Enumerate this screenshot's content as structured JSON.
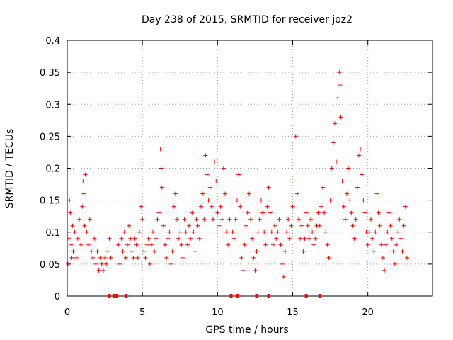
{
  "chart_data": {
    "type": "scatter",
    "title": "Day 238 of 2015, SRMTID for receiver joz2",
    "xlabel": "GPS time / hours",
    "ylabel": "SRMTID / TECUs",
    "xlim": [
      0,
      24.3
    ],
    "ylim": [
      0,
      0.4
    ],
    "xticks": [
      0,
      5,
      10,
      15,
      20
    ],
    "xtick_labels": [
      "0",
      "5",
      "10",
      "15",
      "20"
    ],
    "yticks": [
      0,
      0.05,
      0.1,
      0.15,
      0.2,
      0.25,
      0.3,
      0.35,
      0.4
    ],
    "ytick_labels": [
      "0",
      "0.05",
      "0.1",
      "0.15",
      "0.2",
      "0.25",
      "0.3",
      "0.35",
      "0.4"
    ],
    "grid": true,
    "marker": "+",
    "color": "#ff0000",
    "series": [
      {
        "name": "SRMTID",
        "points": [
          [
            0.05,
            0.05
          ],
          [
            0.1,
            0.09
          ],
          [
            0.15,
            0.15
          ],
          [
            0.2,
            0.13
          ],
          [
            0.25,
            0.08
          ],
          [
            0.3,
            0.06
          ],
          [
            0.35,
            0.11
          ],
          [
            0.4,
            0.07
          ],
          [
            0.5,
            0.1
          ],
          [
            0.6,
            0.06
          ],
          [
            0.7,
            0.09
          ],
          [
            0.8,
            0.12
          ],
          [
            0.9,
            0.08
          ],
          [
            1.0,
            0.14
          ],
          [
            1.05,
            0.18
          ],
          [
            1.1,
            0.16
          ],
          [
            1.15,
            0.11
          ],
          [
            1.2,
            0.19
          ],
          [
            1.3,
            0.1
          ],
          [
            1.4,
            0.08
          ],
          [
            1.5,
            0.12
          ],
          [
            1.6,
            0.07
          ],
          [
            1.7,
            0.06
          ],
          [
            1.8,
            0.09
          ],
          [
            1.9,
            0.05
          ],
          [
            2.0,
            0.07
          ],
          [
            2.1,
            0.04
          ],
          [
            2.2,
            0.06
          ],
          [
            2.3,
            0.05
          ],
          [
            2.4,
            0.04
          ],
          [
            2.5,
            0.06
          ],
          [
            2.6,
            0.05
          ],
          [
            2.7,
            0.07
          ],
          [
            2.8,
            0.09
          ],
          [
            2.9,
            0.06
          ],
          [
            3.4,
            0.08
          ],
          [
            3.5,
            0.05
          ],
          [
            3.6,
            0.09
          ],
          [
            3.7,
            0.07
          ],
          [
            3.8,
            0.1
          ],
          [
            3.9,
            0.06
          ],
          [
            4.0,
            0.08
          ],
          [
            4.1,
            0.11
          ],
          [
            4.2,
            0.09
          ],
          [
            4.3,
            0.07
          ],
          [
            4.4,
            0.06
          ],
          [
            4.5,
            0.09
          ],
          [
            4.6,
            0.08
          ],
          [
            4.7,
            0.06
          ],
          [
            4.8,
            0.1
          ],
          [
            4.9,
            0.14
          ],
          [
            5.0,
            0.12
          ],
          [
            5.1,
            0.07
          ],
          [
            5.2,
            0.06
          ],
          [
            5.3,
            0.08
          ],
          [
            5.4,
            0.09
          ],
          [
            5.5,
            0.05
          ],
          [
            5.6,
            0.08
          ],
          [
            5.7,
            0.1
          ],
          [
            5.8,
            0.07
          ],
          [
            5.9,
            0.09
          ],
          [
            6.0,
            0.12
          ],
          [
            6.1,
            0.13
          ],
          [
            6.2,
            0.23
          ],
          [
            6.25,
            0.2
          ],
          [
            6.3,
            0.17
          ],
          [
            6.4,
            0.11
          ],
          [
            6.5,
            0.08
          ],
          [
            6.6,
            0.06
          ],
          [
            6.7,
            0.09
          ],
          [
            6.8,
            0.1
          ],
          [
            6.9,
            0.05
          ],
          [
            7.0,
            0.07
          ],
          [
            7.1,
            0.14
          ],
          [
            7.2,
            0.16
          ],
          [
            7.3,
            0.12
          ],
          [
            7.4,
            0.09
          ],
          [
            7.5,
            0.1
          ],
          [
            7.6,
            0.08
          ],
          [
            7.7,
            0.06
          ],
          [
            7.8,
            0.12
          ],
          [
            7.9,
            0.1
          ],
          [
            8.0,
            0.08
          ],
          [
            8.1,
            0.11
          ],
          [
            8.2,
            0.09
          ],
          [
            8.3,
            0.13
          ],
          [
            8.4,
            0.1
          ],
          [
            8.5,
            0.07
          ],
          [
            8.6,
            0.12
          ],
          [
            8.7,
            0.11
          ],
          [
            8.8,
            0.09
          ],
          [
            8.9,
            0.14
          ],
          [
            9.0,
            0.16
          ],
          [
            9.1,
            0.12
          ],
          [
            9.2,
            0.22
          ],
          [
            9.3,
            0.19
          ],
          [
            9.4,
            0.15
          ],
          [
            9.5,
            0.17
          ],
          [
            9.6,
            0.14
          ],
          [
            9.7,
            0.12
          ],
          [
            9.8,
            0.21
          ],
          [
            9.9,
            0.18
          ],
          [
            10.0,
            0.13
          ],
          [
            10.1,
            0.11
          ],
          [
            10.2,
            0.14
          ],
          [
            10.3,
            0.12
          ],
          [
            10.4,
            0.2
          ],
          [
            10.5,
            0.16
          ],
          [
            10.6,
            0.1
          ],
          [
            10.7,
            0.08
          ],
          [
            10.8,
            0.12
          ],
          [
            11.0,
            0.1
          ],
          [
            11.1,
            0.09
          ],
          [
            11.2,
            0.12
          ],
          [
            11.3,
            0.15
          ],
          [
            11.4,
            0.19
          ],
          [
            11.5,
            0.14
          ],
          [
            11.6,
            0.06
          ],
          [
            11.7,
            0.04
          ],
          [
            11.8,
            0.08
          ],
          [
            11.9,
            0.11
          ],
          [
            12.0,
            0.13
          ],
          [
            12.1,
            0.16
          ],
          [
            12.2,
            0.12
          ],
          [
            12.3,
            0.09
          ],
          [
            12.4,
            0.06
          ],
          [
            12.5,
            0.04
          ],
          [
            12.6,
            0.07
          ],
          [
            12.7,
            0.1
          ],
          [
            12.8,
            0.12
          ],
          [
            12.9,
            0.15
          ],
          [
            13.0,
            0.13
          ],
          [
            13.1,
            0.1
          ],
          [
            13.2,
            0.08
          ],
          [
            13.3,
            0.14
          ],
          [
            13.4,
            0.17
          ],
          [
            13.5,
            0.13
          ],
          [
            13.6,
            0.1
          ],
          [
            13.7,
            0.08
          ],
          [
            13.8,
            0.11
          ],
          [
            13.9,
            0.09
          ],
          [
            14.0,
            0.1
          ],
          [
            14.1,
            0.12
          ],
          [
            14.2,
            0.08
          ],
          [
            14.3,
            0.05
          ],
          [
            14.4,
            0.03
          ],
          [
            14.5,
            0.07
          ],
          [
            14.6,
            0.1
          ],
          [
            14.7,
            0.12
          ],
          [
            14.8,
            0.09
          ],
          [
            14.9,
            0.11
          ],
          [
            15.0,
            0.14
          ],
          [
            15.1,
            0.18
          ],
          [
            15.2,
            0.25
          ],
          [
            15.3,
            0.16
          ],
          [
            15.4,
            0.12
          ],
          [
            15.5,
            0.09
          ],
          [
            15.6,
            0.11
          ],
          [
            15.7,
            0.07
          ],
          [
            15.8,
            0.09
          ],
          [
            15.9,
            0.13
          ],
          [
            16.0,
            0.11
          ],
          [
            16.1,
            0.09
          ],
          [
            16.2,
            0.12
          ],
          [
            16.3,
            0.1
          ],
          [
            16.4,
            0.08
          ],
          [
            16.5,
            0.09
          ],
          [
            16.6,
            0.11
          ],
          [
            16.7,
            0.13
          ],
          [
            16.8,
            0.11
          ],
          [
            16.9,
            0.14
          ],
          [
            17.0,
            0.17
          ],
          [
            17.1,
            0.13
          ],
          [
            17.2,
            0.1
          ],
          [
            17.3,
            0.08
          ],
          [
            17.4,
            0.06
          ],
          [
            17.5,
            0.15
          ],
          [
            17.6,
            0.2
          ],
          [
            17.7,
            0.24
          ],
          [
            17.8,
            0.27
          ],
          [
            17.9,
            0.21
          ],
          [
            18.0,
            0.31
          ],
          [
            18.1,
            0.35
          ],
          [
            18.15,
            0.33
          ],
          [
            18.2,
            0.28
          ],
          [
            18.3,
            0.18
          ],
          [
            18.4,
            0.14
          ],
          [
            18.5,
            0.12
          ],
          [
            18.6,
            0.16
          ],
          [
            18.7,
            0.2
          ],
          [
            18.8,
            0.15
          ],
          [
            18.9,
            0.13
          ],
          [
            19.0,
            0.11
          ],
          [
            19.1,
            0.09
          ],
          [
            19.2,
            0.12
          ],
          [
            19.3,
            0.17
          ],
          [
            19.4,
            0.22
          ],
          [
            19.5,
            0.23
          ],
          [
            19.6,
            0.19
          ],
          [
            19.7,
            0.15
          ],
          [
            19.8,
            0.13
          ],
          [
            19.9,
            0.1
          ],
          [
            20.0,
            0.08
          ],
          [
            20.1,
            0.1
          ],
          [
            20.2,
            0.12
          ],
          [
            20.3,
            0.09
          ],
          [
            20.4,
            0.07
          ],
          [
            20.5,
            0.1
          ],
          [
            20.6,
            0.16
          ],
          [
            20.7,
            0.13
          ],
          [
            20.8,
            0.11
          ],
          [
            20.9,
            0.08
          ],
          [
            21.0,
            0.06
          ],
          [
            21.1,
            0.04
          ],
          [
            21.2,
            0.08
          ],
          [
            21.3,
            0.1
          ],
          [
            21.4,
            0.13
          ],
          [
            21.5,
            0.11
          ],
          [
            21.6,
            0.09
          ],
          [
            21.7,
            0.07
          ],
          [
            21.8,
            0.05
          ],
          [
            21.9,
            0.08
          ],
          [
            22.0,
            0.1
          ],
          [
            22.1,
            0.12
          ],
          [
            22.2,
            0.09
          ],
          [
            22.3,
            0.07
          ],
          [
            22.4,
            0.11
          ],
          [
            22.5,
            0.14
          ],
          [
            22.6,
            0.06
          ]
        ]
      }
    ],
    "gap_markers": [
      2.8,
      3.1,
      3.3,
      3.9,
      10.9,
      11.3,
      12.6,
      13.4,
      15.9,
      16.8
    ]
  }
}
